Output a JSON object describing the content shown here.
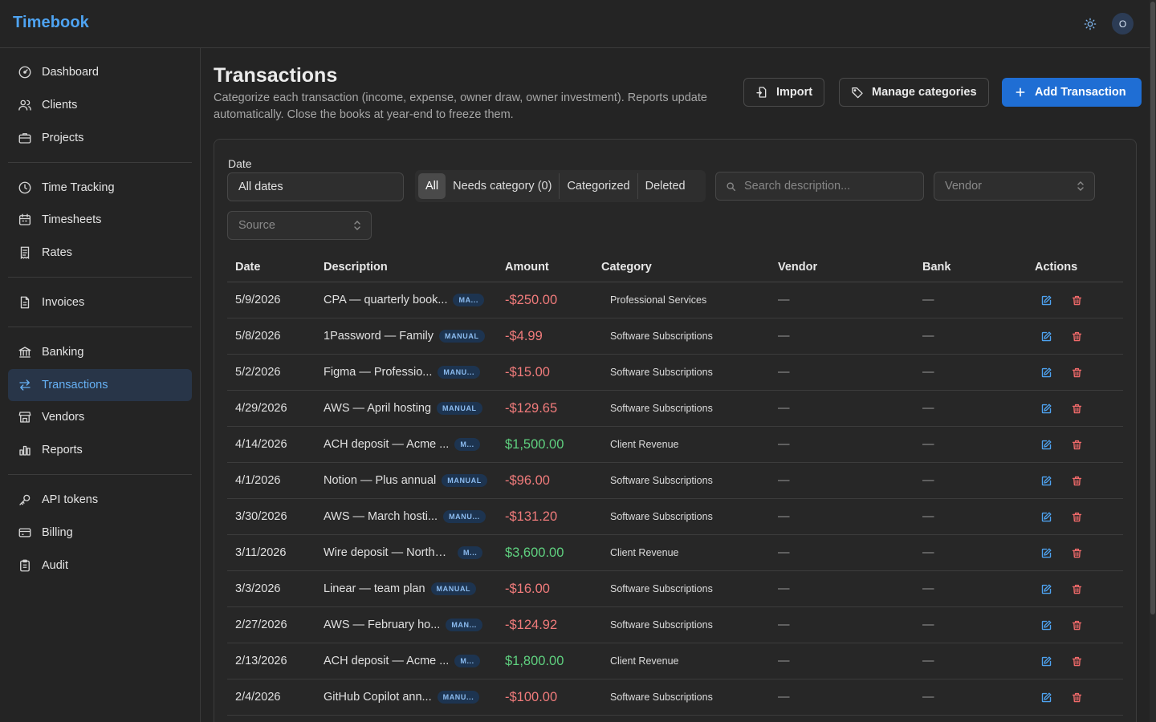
{
  "app": {
    "name": "Timebook",
    "avatar_initial": "O",
    "colors": {
      "accent": "#1f6ed4",
      "negative": "#f07b7b",
      "positive": "#5fd07f"
    }
  },
  "sidebar": {
    "items": [
      {
        "label": "Dashboard",
        "icon": "gauge-icon"
      },
      {
        "label": "Clients",
        "icon": "users-icon"
      },
      {
        "label": "Projects",
        "icon": "briefcase-icon"
      },
      {
        "label": "Time Tracking",
        "icon": "clock-icon"
      },
      {
        "label": "Timesheets",
        "icon": "calendar-icon"
      },
      {
        "label": "Rates",
        "icon": "receipt-icon"
      },
      {
        "label": "Invoices",
        "icon": "file-icon"
      },
      {
        "label": "Banking",
        "icon": "bank-icon"
      },
      {
        "label": "Transactions",
        "icon": "arrows-icon",
        "active": true
      },
      {
        "label": "Vendors",
        "icon": "store-icon"
      },
      {
        "label": "Reports",
        "icon": "bar-chart-icon"
      },
      {
        "label": "API tokens",
        "icon": "key-icon"
      },
      {
        "label": "Billing",
        "icon": "credit-card-icon"
      },
      {
        "label": "Audit",
        "icon": "clipboard-icon"
      }
    ]
  },
  "header": {
    "title": "Transactions",
    "subtitle": "Categorize each transaction (income, expense, owner draw, owner investment). Reports update automatically. Close the books at year-end to freeze them.",
    "import_label": "Import",
    "manage_label": "Manage categories",
    "add_label": "Add Transaction"
  },
  "filters": {
    "date_label": "Date",
    "date_value": "All dates",
    "segments": [
      "All",
      "Needs category (0)",
      "Categorized",
      "Deleted"
    ],
    "active_segment": "All",
    "search_placeholder": "Search description...",
    "vendor_placeholder": "Vendor",
    "source_placeholder": "Source"
  },
  "table": {
    "columns": [
      "Date",
      "Description",
      "Amount",
      "Category",
      "Vendor",
      "Bank",
      "Actions"
    ],
    "rows": [
      {
        "date": "5/9/2026",
        "description": "CPA — quarterly book...",
        "badge": "MA...",
        "amount": "-$250.00",
        "sign": "neg",
        "category": "Professional Services",
        "vendor": "—",
        "bank": "—"
      },
      {
        "date": "5/8/2026",
        "description": "1Password — Family",
        "badge": "MANUAL",
        "amount": "-$4.99",
        "sign": "neg",
        "category": "Software Subscriptions",
        "vendor": "—",
        "bank": "—"
      },
      {
        "date": "5/2/2026",
        "description": "Figma — Professio...",
        "badge": "MANU...",
        "amount": "-$15.00",
        "sign": "neg",
        "category": "Software Subscriptions",
        "vendor": "—",
        "bank": "—"
      },
      {
        "date": "4/29/2026",
        "description": "AWS — April hosting",
        "badge": "MANUAL",
        "amount": "-$129.65",
        "sign": "neg",
        "category": "Software Subscriptions",
        "vendor": "—",
        "bank": "—"
      },
      {
        "date": "4/14/2026",
        "description": "ACH deposit — Acme ...",
        "badge": "M...",
        "amount": "$1,500.00",
        "sign": "pos",
        "category": "Client Revenue",
        "vendor": "—",
        "bank": "—"
      },
      {
        "date": "4/1/2026",
        "description": "Notion — Plus annual",
        "badge": "MANUAL",
        "amount": "-$96.00",
        "sign": "neg",
        "category": "Software Subscriptions",
        "vendor": "—",
        "bank": "—"
      },
      {
        "date": "3/30/2026",
        "description": "AWS — March hosti...",
        "badge": "MANU...",
        "amount": "-$131.20",
        "sign": "neg",
        "category": "Software Subscriptions",
        "vendor": "—",
        "bank": "—"
      },
      {
        "date": "3/11/2026",
        "description": "Wire deposit — Northw...",
        "badge": "M...",
        "amount": "$3,600.00",
        "sign": "pos",
        "category": "Client Revenue",
        "vendor": "—",
        "bank": "—"
      },
      {
        "date": "3/3/2026",
        "description": "Linear — team plan",
        "badge": "MANUAL",
        "amount": "-$16.00",
        "sign": "neg",
        "category": "Software Subscriptions",
        "vendor": "—",
        "bank": "—"
      },
      {
        "date": "2/27/2026",
        "description": "AWS — February ho...",
        "badge": "MAN...",
        "amount": "-$124.92",
        "sign": "neg",
        "category": "Software Subscriptions",
        "vendor": "—",
        "bank": "—"
      },
      {
        "date": "2/13/2026",
        "description": "ACH deposit — Acme ...",
        "badge": "M...",
        "amount": "$1,800.00",
        "sign": "pos",
        "category": "Client Revenue",
        "vendor": "—",
        "bank": "—"
      },
      {
        "date": "2/4/2026",
        "description": "GitHub Copilot ann...",
        "badge": "MANU...",
        "amount": "-$100.00",
        "sign": "neg",
        "category": "Software Subscriptions",
        "vendor": "—",
        "bank": "—"
      }
    ]
  }
}
